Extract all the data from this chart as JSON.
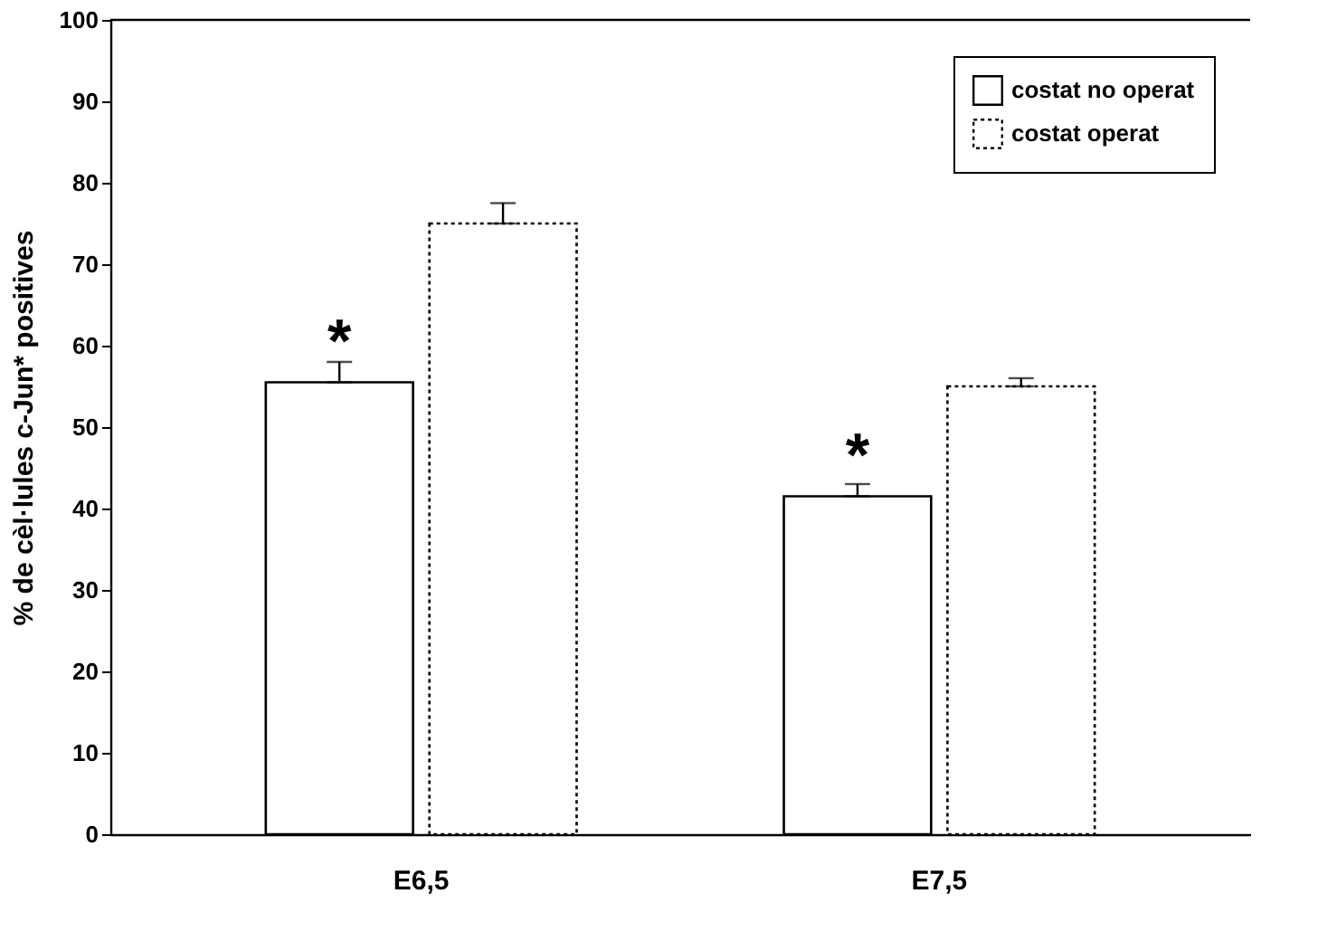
{
  "chart_data": {
    "type": "bar",
    "ylabel": "% de cèl·lules c-Jun* positives",
    "categories": [
      "E6,5",
      "E7,5"
    ],
    "series": [
      {
        "name": "costat no operat",
        "color": "#ffffff",
        "line_style": "solid",
        "values": [
          55.5,
          41.5
        ],
        "errors": [
          [
            55.5,
            58
          ],
          [
            41.5,
            43
          ]
        ]
      },
      {
        "name": "costat operat",
        "color": "#ffffff",
        "line_style": "dotted",
        "values": [
          75,
          55
        ],
        "errors": [
          [
            75,
            77.5
          ],
          [
            55,
            56
          ]
        ]
      }
    ],
    "ylim": [
      0,
      100
    ],
    "yticks": [
      0,
      10,
      20,
      30,
      40,
      50,
      60,
      70,
      80,
      90,
      100
    ],
    "annotations": [
      {
        "text": "*",
        "x": "E6,5",
        "y": 62
      },
      {
        "text": "*",
        "x": "E7,5",
        "y": 48
      }
    ],
    "legend": "top right",
    "grid": false
  }
}
